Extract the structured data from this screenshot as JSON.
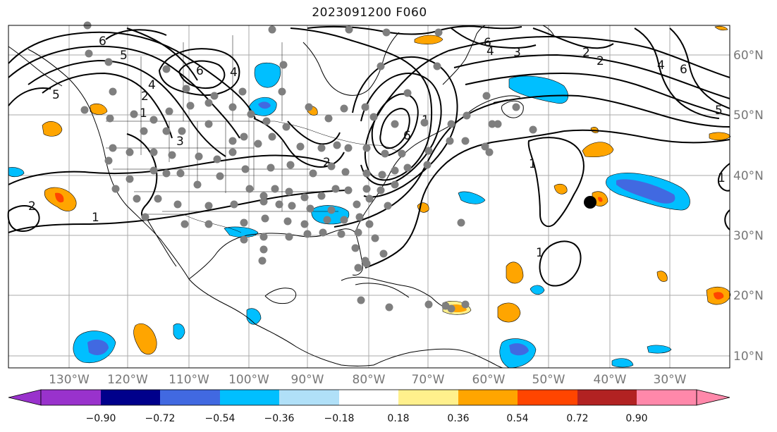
{
  "title": "2023091200 F060",
  "map": {
    "lon_ticks": [
      "130°W",
      "120°W",
      "110°W",
      "100°W",
      "90°W",
      "80°W",
      "70°W",
      "60°W",
      "50°W",
      "40°W",
      "30°W"
    ],
    "lat_ticks": [
      "60°N",
      "50°N",
      "40°N",
      "30°N",
      "20°N",
      "10°N"
    ],
    "contour_labels": [
      "6",
      "5",
      "6",
      "4",
      "4",
      "2",
      "1",
      "5",
      "3",
      "1",
      "2",
      "2",
      "6",
      "6",
      "4",
      "3",
      "2",
      "6",
      "4",
      "2",
      "5",
      "1",
      "1",
      "1",
      "1"
    ],
    "gridline_color": "#aaaaaa",
    "coast_color": "#000000",
    "station_color": "#7f7f7f",
    "marker_color": "#000000"
  },
  "colorbar": {
    "ticks": [
      "−0.90",
      "−0.72",
      "−0.54",
      "−0.36",
      "−0.18",
      "0.18",
      "0.36",
      "0.54",
      "0.72",
      "0.90"
    ],
    "colors": [
      "#9932cc",
      "#00008b",
      "#4169e1",
      "#00bfff",
      "#b0e0f8",
      "#ffffff",
      "#fff08c",
      "#ffa500",
      "#ff4500",
      "#b22222",
      "#ff88aa"
    ]
  }
}
